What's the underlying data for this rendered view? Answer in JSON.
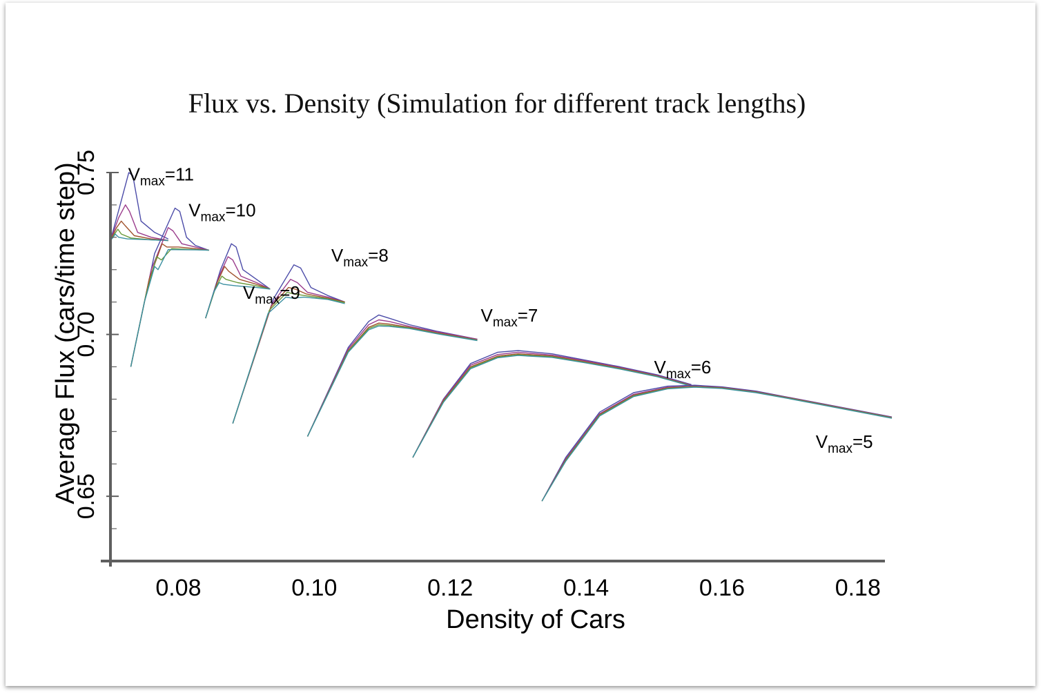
{
  "chart_data": {
    "type": "line",
    "title": "Flux vs. Density (Simulation for different track lengths)",
    "xlabel": "Density of Cars",
    "ylabel": "Average Flux (cars/time step)",
    "xlim": [
      0.07,
      0.185
    ],
    "ylim": [
      0.63,
      0.75
    ],
    "x_ticks": [
      "0.08",
      "0.10",
      "0.12",
      "0.14",
      "0.16",
      "0.18"
    ],
    "y_ticks": [
      "0.65",
      "0.70",
      "0.75"
    ],
    "x_tick_values": [
      0.08,
      0.1,
      0.12,
      0.14,
      0.16,
      0.18
    ],
    "y_tick_values": [
      0.65,
      0.7,
      0.75
    ],
    "grid": false,
    "colors": [
      "#4b4ba8",
      "#9a3c8c",
      "#a0522d",
      "#6a9a3a",
      "#3a8fa0"
    ],
    "series": [
      {
        "label_main": "V",
        "label_sub": "max",
        "label_tail": "=11",
        "label_x": 0.0726,
        "label_y": 0.7475,
        "curves": [
          {
            "x": [
              0.07,
              0.0713,
              0.0727,
              0.0733,
              0.0745,
              0.0765,
              0.0785
            ],
            "y": [
              0.729,
              0.739,
              0.75,
              0.749,
              0.735,
              0.7315,
              0.7295
            ]
          },
          {
            "x": [
              0.07,
              0.0712,
              0.0722,
              0.0728,
              0.074,
              0.076,
              0.0785
            ],
            "y": [
              0.729,
              0.736,
              0.74,
              0.738,
              0.7315,
              0.73,
              0.729
            ]
          },
          {
            "x": [
              0.07,
              0.0709,
              0.0716,
              0.0722,
              0.0735,
              0.076,
              0.0785
            ],
            "y": [
              0.729,
              0.733,
              0.735,
              0.7335,
              0.7305,
              0.7295,
              0.729
            ]
          },
          {
            "x": [
              0.07,
              0.0706,
              0.0711,
              0.0716,
              0.073,
              0.076,
              0.0785
            ],
            "y": [
              0.729,
              0.731,
              0.7325,
              0.731,
              0.7298,
              0.7292,
              0.729
            ]
          },
          {
            "x": [
              0.07,
              0.0704,
              0.0707,
              0.0712,
              0.0725,
              0.076,
              0.0785
            ],
            "y": [
              0.729,
              0.73,
              0.731,
              0.73,
              0.7295,
              0.7292,
              0.729
            ]
          }
        ]
      },
      {
        "label_main": "V",
        "label_sub": "max",
        "label_tail": "=10",
        "label_x": 0.0815,
        "label_y": 0.7365,
        "curves": [
          {
            "x": [
              0.073,
              0.0765,
              0.0795,
              0.0802,
              0.0812,
              0.0825,
              0.0845
            ],
            "y": [
              0.69,
              0.725,
              0.739,
              0.738,
              0.73,
              0.7275,
              0.726
            ]
          },
          {
            "x": [
              0.073,
              0.076,
              0.0785,
              0.0792,
              0.0805,
              0.0825,
              0.0845
            ],
            "y": [
              0.69,
              0.72,
              0.733,
              0.732,
              0.728,
              0.727,
              0.726
            ]
          },
          {
            "x": [
              0.073,
              0.0757,
              0.0776,
              0.0783,
              0.08,
              0.0825,
              0.0845
            ],
            "y": [
              0.69,
              0.717,
              0.728,
              0.727,
              0.727,
              0.7265,
              0.726
            ]
          },
          {
            "x": [
              0.073,
              0.0752,
              0.0768,
              0.0775,
              0.079,
              0.0825,
              0.0845
            ],
            "y": [
              0.69,
              0.712,
              0.724,
              0.723,
              0.7265,
              0.7262,
              0.726
            ]
          },
          {
            "x": [
              0.073,
              0.075,
              0.0765,
              0.077,
              0.0785,
              0.0825,
              0.0845
            ],
            "y": [
              0.69,
              0.71,
              0.721,
              0.72,
              0.7262,
              0.7261,
              0.726
            ]
          }
        ]
      },
      {
        "label_main": "V",
        "label_sub": "max",
        "label_tail": "=9",
        "label_x": 0.0895,
        "label_y": 0.711,
        "curves": [
          {
            "x": [
              0.084,
              0.0862,
              0.0878,
              0.0885,
              0.0895,
              0.0915,
              0.0935
            ],
            "y": [
              0.705,
              0.72,
              0.728,
              0.727,
              0.72,
              0.717,
              0.714
            ]
          },
          {
            "x": [
              0.084,
              0.086,
              0.0873,
              0.088,
              0.0892,
              0.0915,
              0.0935
            ],
            "y": [
              0.705,
              0.718,
              0.724,
              0.723,
              0.718,
              0.716,
              0.714
            ]
          },
          {
            "x": [
              0.084,
              0.0857,
              0.0868,
              0.0874,
              0.089,
              0.0915,
              0.0935
            ],
            "y": [
              0.705,
              0.716,
              0.721,
              0.7195,
              0.717,
              0.7155,
              0.714
            ]
          },
          {
            "x": [
              0.084,
              0.0854,
              0.0864,
              0.087,
              0.0887,
              0.0915,
              0.0935
            ],
            "y": [
              0.705,
              0.714,
              0.718,
              0.717,
              0.716,
              0.715,
              0.714
            ]
          },
          {
            "x": [
              0.084,
              0.0852,
              0.086,
              0.0866,
              0.0885,
              0.0915,
              0.0935
            ],
            "y": [
              0.705,
              0.713,
              0.716,
              0.7155,
              0.715,
              0.7145,
              0.714
            ]
          }
        ]
      },
      {
        "label_main": "V",
        "label_sub": "max",
        "label_tail": "=8",
        "label_x": 0.1025,
        "label_y": 0.7225,
        "curves": [
          {
            "x": [
              0.088,
              0.094,
              0.097,
              0.098,
              0.0995,
              0.102,
              0.1045
            ],
            "y": [
              0.6725,
              0.711,
              0.7215,
              0.7205,
              0.7145,
              0.712,
              0.71
            ]
          },
          {
            "x": [
              0.088,
              0.0938,
              0.0965,
              0.0975,
              0.099,
              0.102,
              0.1045
            ],
            "y": [
              0.6725,
              0.7095,
              0.717,
              0.716,
              0.713,
              0.7115,
              0.71
            ]
          },
          {
            "x": [
              0.088,
              0.0936,
              0.0962,
              0.0972,
              0.0988,
              0.102,
              0.1045
            ],
            "y": [
              0.6725,
              0.7085,
              0.7145,
              0.714,
              0.7125,
              0.7112,
              0.71
            ]
          },
          {
            "x": [
              0.088,
              0.0934,
              0.096,
              0.097,
              0.0986,
              0.102,
              0.1045
            ],
            "y": [
              0.6725,
              0.7075,
              0.713,
              0.7125,
              0.712,
              0.711,
              0.7098
            ]
          },
          {
            "x": [
              0.088,
              0.0932,
              0.0958,
              0.0968,
              0.0985,
              0.102,
              0.1045
            ],
            "y": [
              0.6725,
              0.7065,
              0.7115,
              0.7112,
              0.7115,
              0.7108,
              0.7095
            ]
          }
        ]
      },
      {
        "label_main": "V",
        "label_sub": "max",
        "label_tail": "=7",
        "label_x": 0.1245,
        "label_y": 0.704,
        "curves": [
          {
            "x": [
              0.099,
              0.105,
              0.108,
              0.1095,
              0.111,
              0.114,
              0.118,
              0.124
            ],
            "y": [
              0.6685,
              0.696,
              0.704,
              0.706,
              0.705,
              0.703,
              0.701,
              0.6985
            ]
          },
          {
            "x": [
              0.099,
              0.105,
              0.108,
              0.1095,
              0.111,
              0.114,
              0.118,
              0.124
            ],
            "y": [
              0.6685,
              0.6955,
              0.703,
              0.7045,
              0.704,
              0.7025,
              0.7008,
              0.6985
            ]
          },
          {
            "x": [
              0.099,
              0.105,
              0.108,
              0.1095,
              0.111,
              0.114,
              0.118,
              0.124
            ],
            "y": [
              0.6685,
              0.695,
              0.7022,
              0.7035,
              0.7032,
              0.7022,
              0.7005,
              0.6983
            ]
          },
          {
            "x": [
              0.099,
              0.105,
              0.108,
              0.1095,
              0.111,
              0.114,
              0.118,
              0.124
            ],
            "y": [
              0.6685,
              0.6948,
              0.7018,
              0.703,
              0.7028,
              0.702,
              0.7003,
              0.6982
            ]
          },
          {
            "x": [
              0.099,
              0.105,
              0.108,
              0.1095,
              0.111,
              0.114,
              0.118,
              0.124
            ],
            "y": [
              0.6685,
              0.6945,
              0.7014,
              0.7026,
              0.7025,
              0.7018,
              0.7002,
              0.6981
            ]
          }
        ]
      },
      {
        "label_main": "V",
        "label_sub": "max",
        "label_tail": "=6",
        "label_x": 0.15,
        "label_y": 0.688,
        "curves": [
          {
            "x": [
              0.1145,
              0.119,
              0.123,
              0.127,
              0.13,
              0.135,
              0.14,
              0.145,
              0.1505,
              0.1555
            ],
            "y": [
              0.662,
              0.68,
              0.691,
              0.6945,
              0.695,
              0.694,
              0.692,
              0.69,
              0.6875,
              0.6845
            ]
          },
          {
            "x": [
              0.1145,
              0.119,
              0.123,
              0.127,
              0.13,
              0.135,
              0.14,
              0.145,
              0.1505,
              0.1555
            ],
            "y": [
              0.662,
              0.6798,
              0.6905,
              0.6938,
              0.6945,
              0.6936,
              0.6918,
              0.6898,
              0.6873,
              0.6843
            ]
          },
          {
            "x": [
              0.1145,
              0.119,
              0.123,
              0.127,
              0.13,
              0.135,
              0.14,
              0.145,
              0.1505,
              0.1555
            ],
            "y": [
              0.662,
              0.6795,
              0.69,
              0.6933,
              0.694,
              0.6933,
              0.6915,
              0.6896,
              0.6871,
              0.6842
            ]
          },
          {
            "x": [
              0.1145,
              0.119,
              0.123,
              0.127,
              0.13,
              0.135,
              0.14,
              0.145,
              0.1505,
              0.1555
            ],
            "y": [
              0.662,
              0.6792,
              0.6897,
              0.693,
              0.6937,
              0.6931,
              0.6913,
              0.6894,
              0.687,
              0.6841
            ]
          },
          {
            "x": [
              0.1145,
              0.119,
              0.123,
              0.127,
              0.13,
              0.135,
              0.14,
              0.145,
              0.1505,
              0.1555
            ],
            "y": [
              0.662,
              0.679,
              0.6894,
              0.6928,
              0.6935,
              0.6929,
              0.6912,
              0.6893,
              0.6869,
              0.684
            ]
          }
        ]
      },
      {
        "label_main": "V",
        "label_sub": "max",
        "label_tail": "=5",
        "label_x": 0.1738,
        "label_y": 0.665,
        "curves": [
          {
            "x": [
              0.1335,
              0.137,
              0.142,
              0.147,
              0.152,
              0.156,
              0.16,
              0.165,
              0.17,
              0.175,
              0.18,
              0.185
            ],
            "y": [
              0.6485,
              0.662,
              0.676,
              0.682,
              0.684,
              0.6843,
              0.6838,
              0.6825,
              0.6805,
              0.6785,
              0.6765,
              0.6745
            ]
          },
          {
            "x": [
              0.1335,
              0.137,
              0.142,
              0.147,
              0.152,
              0.156,
              0.16,
              0.165,
              0.17,
              0.175,
              0.18,
              0.185
            ],
            "y": [
              0.6485,
              0.6615,
              0.6755,
              0.6815,
              0.6837,
              0.684,
              0.6836,
              0.6823,
              0.6804,
              0.6784,
              0.6764,
              0.6744
            ]
          },
          {
            "x": [
              0.1335,
              0.137,
              0.142,
              0.147,
              0.152,
              0.156,
              0.16,
              0.165,
              0.17,
              0.175,
              0.18,
              0.185
            ],
            "y": [
              0.6485,
              0.6612,
              0.6752,
              0.6812,
              0.6835,
              0.6839,
              0.6835,
              0.6822,
              0.6803,
              0.6783,
              0.6763,
              0.6743
            ]
          },
          {
            "x": [
              0.1335,
              0.137,
              0.142,
              0.147,
              0.152,
              0.156,
              0.16,
              0.165,
              0.17,
              0.175,
              0.18,
              0.185
            ],
            "y": [
              0.6485,
              0.661,
              0.675,
              0.681,
              0.6833,
              0.6838,
              0.6834,
              0.6821,
              0.6802,
              0.6782,
              0.6762,
              0.6742
            ]
          },
          {
            "x": [
              0.1335,
              0.137,
              0.142,
              0.147,
              0.152,
              0.156,
              0.16,
              0.165,
              0.17,
              0.175,
              0.18,
              0.185
            ],
            "y": [
              0.6485,
              0.6608,
              0.6748,
              0.6808,
              0.6832,
              0.6837,
              0.6833,
              0.682,
              0.6801,
              0.6781,
              0.6761,
              0.6741
            ]
          }
        ]
      }
    ]
  }
}
